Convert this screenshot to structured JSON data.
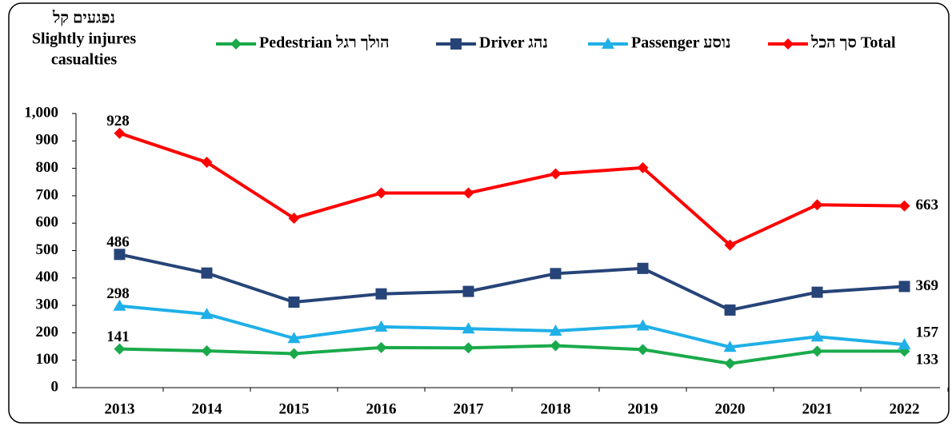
{
  "chart_data": {
    "type": "line",
    "y_title": [
      "נפגעים קל",
      "Slightly injures",
      "casualties"
    ],
    "categories": [
      "2013",
      "2014",
      "2015",
      "2016",
      "2017",
      "2018",
      "2019",
      "2020",
      "2021",
      "2022"
    ],
    "series": [
      {
        "name": "Pedestrian הולך רגל",
        "color": "#1aaa4b",
        "marker": "diamond",
        "values": [
          141,
          134,
          124,
          146,
          145,
          153,
          139,
          88,
          133,
          133
        ]
      },
      {
        "name": "Driver נהג",
        "color": "#264478",
        "marker": "square",
        "values": [
          486,
          418,
          312,
          342,
          351,
          416,
          435,
          283,
          348,
          369
        ]
      },
      {
        "name": "Passenger נוסע",
        "color": "#1fb0e8",
        "marker": "triangle",
        "values": [
          298,
          268,
          180,
          222,
          215,
          207,
          226,
          148,
          186,
          157
        ]
      },
      {
        "name": "סך הכל Total",
        "color": "#ff0000",
        "marker": "diamond",
        "values": [
          928,
          822,
          618,
          710,
          710,
          780,
          802,
          520,
          667,
          663
        ]
      }
    ],
    "ylim": [
      0,
      1000
    ],
    "yticks": [
      0,
      100,
      200,
      300,
      400,
      500,
      600,
      700,
      800,
      900,
      {
        "value": 1000,
        "label": "1,000"
      }
    ]
  }
}
